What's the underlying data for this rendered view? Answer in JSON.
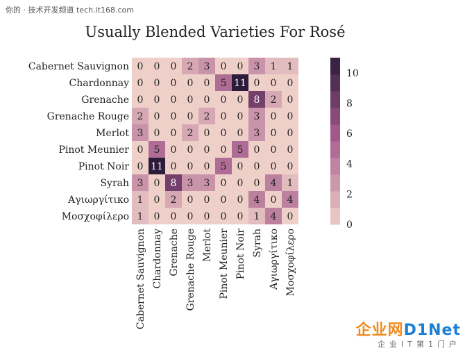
{
  "watermark": {
    "top_text": "你的 · 技术开发频道 tech.it168.com"
  },
  "logo": {
    "brand_a": "企业网",
    "brand_b": "D1Net",
    "slogan": "企业IT第1门户"
  },
  "chart_data": {
    "type": "heatmap",
    "title": "Usually Blended Varieties For Rosé",
    "rows": [
      "Cabernet Sauvignon",
      "Chardonnay",
      "Grenache",
      "Grenache Rouge",
      "Merlot",
      "Pinot Meunier",
      "Pinot Noir",
      "Syrah",
      "Αγιωργίτικο",
      "Μοσχοφίλερο"
    ],
    "columns": [
      "Cabernet Sauvignon",
      "Chardonnay",
      "Grenache",
      "Grenache Rouge",
      "Merlot",
      "Pinot Meunier",
      "Pinot Noir",
      "Syrah",
      "Αγιωργίτικο",
      "Μοσχοφίλερο"
    ],
    "values": [
      [
        0,
        0,
        0,
        2,
        3,
        0,
        0,
        3,
        1,
        1
      ],
      [
        0,
        0,
        0,
        0,
        0,
        5,
        11,
        0,
        0,
        0
      ],
      [
        0,
        0,
        0,
        0,
        0,
        0,
        0,
        8,
        2,
        0
      ],
      [
        2,
        0,
        0,
        0,
        2,
        0,
        0,
        3,
        0,
        0
      ],
      [
        3,
        0,
        0,
        2,
        0,
        0,
        0,
        3,
        0,
        0
      ],
      [
        0,
        5,
        0,
        0,
        0,
        0,
        5,
        0,
        0,
        0
      ],
      [
        0,
        11,
        0,
        0,
        0,
        5,
        0,
        0,
        0,
        0
      ],
      [
        3,
        0,
        8,
        3,
        3,
        0,
        0,
        0,
        4,
        1
      ],
      [
        1,
        0,
        2,
        0,
        0,
        0,
        0,
        4,
        0,
        4
      ],
      [
        1,
        0,
        0,
        0,
        0,
        0,
        0,
        1,
        4,
        0
      ]
    ],
    "colorbar": {
      "min": 0,
      "max": 11,
      "ticks": [
        0,
        2,
        4,
        6,
        8,
        10
      ],
      "levels": 10
    },
    "colors": {
      "low": "#efd0c8",
      "mid": "#a2588a",
      "high": "#2d1b3c",
      "text_dark": "#222222",
      "text_light": "#ffffff"
    }
  }
}
